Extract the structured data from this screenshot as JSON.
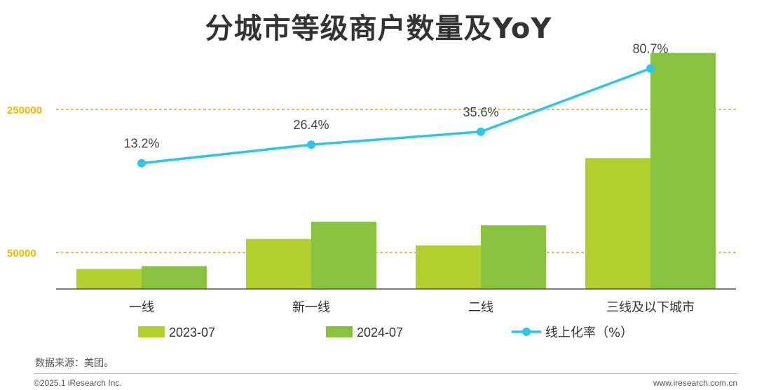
{
  "title": "分城市等级商户数量及YoY",
  "chart_data": {
    "type": "bar",
    "categories": [
      "一线",
      "新一线",
      "二线",
      "三线及以下城市"
    ],
    "series": [
      {
        "name": "2023-07",
        "type": "bar",
        "color": "#b3cf2e",
        "values": [
          27000,
          69000,
          60000,
          182000
        ]
      },
      {
        "name": "2024-07",
        "type": "bar",
        "color": "#88c23f",
        "values": [
          31000,
          93000,
          88000,
          329000
        ]
      },
      {
        "name": "线上化率（%）",
        "type": "line",
        "color": "#2ec5ec",
        "values": [
          13.2,
          26.4,
          35.6,
          80.7
        ],
        "labels": [
          "13.2%",
          "26.4%",
          "35.6%",
          "80.7%"
        ]
      }
    ],
    "reference_lines": [
      {
        "value": 250000,
        "label": "250000",
        "color": "#b8a000"
      },
      {
        "value": 50000,
        "label": "50000",
        "color": "#b8a000"
      }
    ],
    "ylim": [
      0,
      340000
    ],
    "line_ylim": [
      0,
      100
    ],
    "legend_position": "bottom",
    "xlabel": "",
    "ylabel": ""
  },
  "source": "数据来源：美团。",
  "footer": {
    "left": "©2025.1 iResearch Inc.",
    "right": "www.iresearch.com.cn"
  }
}
